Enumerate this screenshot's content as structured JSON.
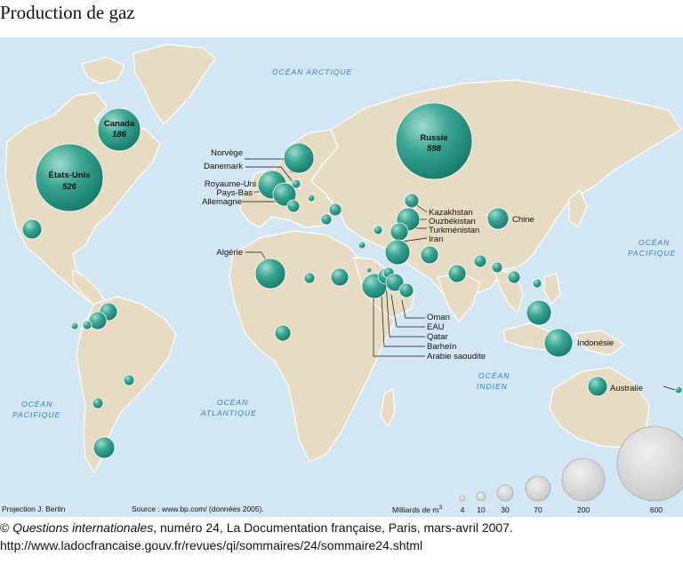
{
  "title": "Production de gaz",
  "oceans": {
    "arctique": "OCÉAN ARCTIQUE",
    "pacifique_ouest_1": "OCÉAN",
    "pacifique_ouest_2": "PACIFIQUE",
    "atlantique_1": "OCÉAN",
    "atlantique_2": "ATLANTIQUE",
    "indien_1": "OCÉAN",
    "indien_2": "INDIEN",
    "pacifique_est_1": "OCÉAN",
    "pacifique_est_2": "PACIFIQUE"
  },
  "countries": {
    "usa": {
      "name": "États-Unis",
      "value": "526"
    },
    "canada": {
      "name": "Canada",
      "value": "186"
    },
    "russie": {
      "name": "Russie",
      "value": "598"
    },
    "norvege": "Norvège",
    "danemark": "Danemark",
    "royaume_uni": "Royaume-Uni",
    "pays_bas": "Pays-Bas",
    "allemagne": "Allemagne",
    "algerie": "Algérie",
    "kazakhstan": "Kazakhstan",
    "ouzbekistan": "Ouzbékistan",
    "turkmenistan": "Turkménistan",
    "iran": "Iran",
    "chine": "Chine",
    "oman": "Oman",
    "eau": "EAU",
    "qatar": "Qatar",
    "bahrein": "Barheïn",
    "arabie": "Arabie saoudite",
    "indonesie": "Indonésie",
    "australie": "Australie"
  },
  "legend": {
    "title": "Milliards de m",
    "sup": "3",
    "values": [
      "4",
      "10",
      "30",
      "70",
      "200",
      "600"
    ]
  },
  "footer": {
    "projection": "Projection J. Bertin",
    "source": "Source : www.bp.com/ (données 2005)."
  },
  "credit": {
    "prefix": "© ",
    "pub": "Questions internationales",
    "rest": ", numéro 24, La Documentation française, Paris, mars-avril 2007.",
    "url": "http://www.ladocfrancaise.gouv.fr/revues/qi/sommaires/24/sommaire24.shtml"
  },
  "colors": {
    "ocean": "#d3e6f3",
    "land": "#e7dbc4",
    "border": "#ffffff",
    "bubble": "#24907e",
    "bubble_light": "#7fcdbd",
    "legend_bubble": "#d9d9d9",
    "ocean_text": "#2f7fb4"
  },
  "production_values": {
    "Russie": 598,
    "États-Unis": 526,
    "Canada": 186
  }
}
